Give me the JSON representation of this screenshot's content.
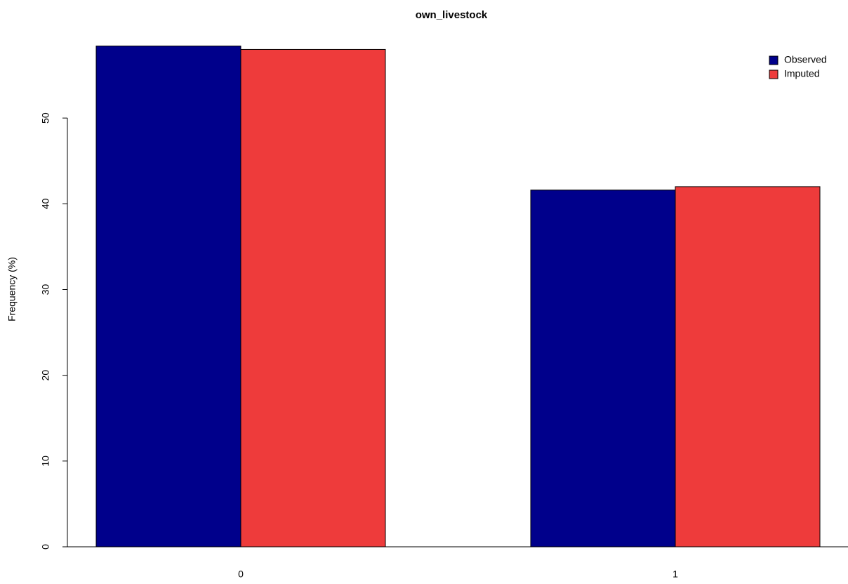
{
  "chart_data": {
    "type": "bar",
    "title": "own_livestock",
    "y_label": "Frequency (%)",
    "categories": [
      "0",
      "1"
    ],
    "series": [
      {
        "name": "Observed",
        "color": "#00008b",
        "values": [
          58.4,
          41.6
        ]
      },
      {
        "name": "Imputed",
        "color": "#ee3b3b",
        "values": [
          58.0,
          42.0
        ]
      }
    ],
    "ylim": [
      0,
      60
    ],
    "yticks": [
      0,
      10,
      20,
      30,
      40,
      50
    ],
    "legend": "top-right"
  }
}
